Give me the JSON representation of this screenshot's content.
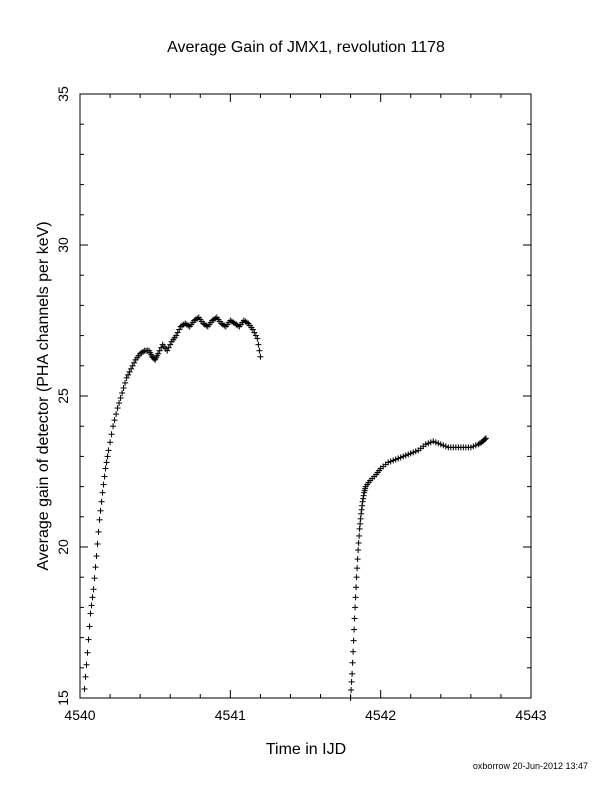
{
  "chart_data": {
    "type": "scatter",
    "title": "Average Gain of JMX1, revolution 1178",
    "xlabel": "Time in IJD",
    "ylabel": "Average gain of detector (PHA channels per keV)",
    "xlim": [
      4540,
      4543
    ],
    "ylim": [
      15,
      35
    ],
    "x_ticks": [
      "4540",
      "4541",
      "4542",
      "4543"
    ],
    "y_ticks": [
      "15",
      "20",
      "25",
      "30",
      "35"
    ],
    "marker": "plus",
    "grid": false,
    "series": [
      {
        "segment": 1,
        "x": [
          4540.03,
          4540.05,
          4540.07,
          4540.09,
          4540.11,
          4540.13,
          4540.15,
          4540.17,
          4540.19,
          4540.22,
          4540.25,
          4540.28,
          4540.31,
          4540.34,
          4540.37,
          4540.4,
          4540.43,
          4540.46,
          4540.48,
          4540.5,
          4540.52,
          4540.55,
          4540.58,
          4540.61,
          4540.64,
          4540.67,
          4540.7,
          4540.73,
          4540.76,
          4540.79,
          4540.82,
          4540.85,
          4540.88,
          4540.91,
          4540.94,
          4540.97,
          4541.0,
          4541.03,
          4541.06,
          4541.09,
          4541.12,
          4541.15,
          4541.18,
          4541.2
        ],
        "y": [
          15.3,
          16.5,
          17.8,
          18.6,
          19.7,
          20.9,
          21.8,
          22.6,
          23.2,
          24.0,
          24.6,
          25.1,
          25.6,
          25.9,
          26.2,
          26.4,
          26.5,
          26.5,
          26.3,
          26.2,
          26.4,
          26.7,
          26.5,
          26.8,
          27.0,
          27.3,
          27.4,
          27.3,
          27.5,
          27.6,
          27.4,
          27.3,
          27.5,
          27.6,
          27.4,
          27.3,
          27.5,
          27.4,
          27.3,
          27.5,
          27.4,
          27.2,
          26.9,
          26.3
        ]
      },
      {
        "segment": 2,
        "x": [
          4541.8,
          4541.81,
          4541.82,
          4541.83,
          4541.84,
          4541.85,
          4541.86,
          4541.87,
          4541.88,
          4541.89,
          4541.9,
          4541.93,
          4541.97,
          4542.0,
          4542.05,
          4542.1,
          4542.15,
          4542.2,
          4542.25,
          4542.3,
          4542.35,
          4542.4,
          4542.45,
          4542.5,
          4542.55,
          4542.6,
          4542.65,
          4542.68,
          4542.7
        ],
        "y": [
          15.0,
          15.8,
          16.9,
          18.0,
          19.0,
          19.9,
          20.6,
          21.1,
          21.5,
          21.8,
          22.0,
          22.2,
          22.4,
          22.6,
          22.8,
          22.9,
          23.0,
          23.1,
          23.2,
          23.4,
          23.5,
          23.4,
          23.3,
          23.3,
          23.3,
          23.3,
          23.4,
          23.5,
          23.6
        ]
      }
    ]
  },
  "footer": {
    "stamp": "oxborrow 20-Jun-2012 13:47"
  }
}
